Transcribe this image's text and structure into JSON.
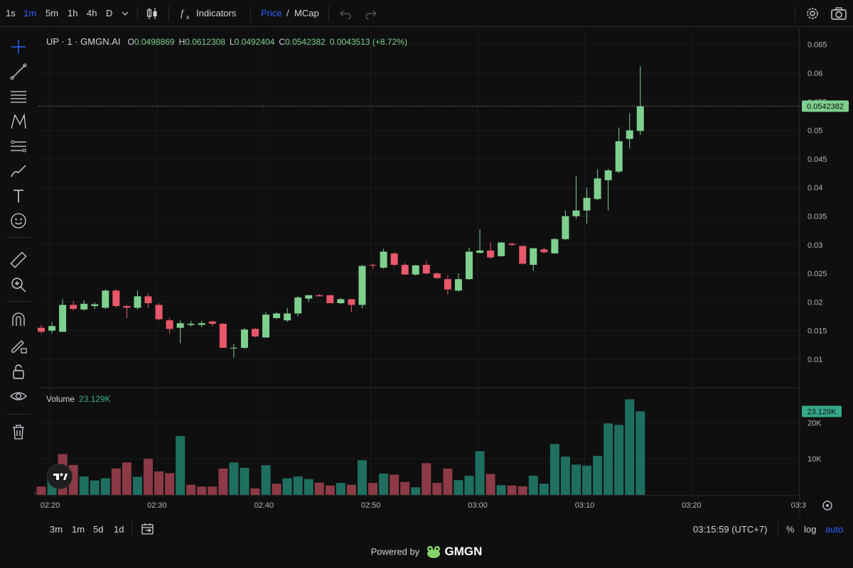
{
  "toolbar": {
    "timeframes": [
      "1s",
      "1m",
      "5m",
      "1h",
      "4h",
      "D"
    ],
    "active_timeframe": "1m",
    "indicators_label": "Indicators",
    "price_label": "Price",
    "slash": "/",
    "mcap_label": "MCap",
    "icons": {
      "chevron": "chevron-down-icon",
      "candles": "candles-icon",
      "fx": "fx-icon",
      "undo": "undo-icon",
      "redo": "redo-icon",
      "settings": "gear-icon",
      "camera": "camera-icon"
    }
  },
  "legend": {
    "symbol": "UP · 1 · GMGN.AI",
    "o_key": "O",
    "o_val": "0.0498869",
    "h_key": "H",
    "h_val": "0.0612308",
    "l_key": "L",
    "l_val": "0.0492404",
    "c_key": "C",
    "c_val": "0.0542382",
    "change": "0.0043513 (+8.72%)"
  },
  "volume_legend": {
    "label": "Volume",
    "value": "23.129K"
  },
  "bottom": {
    "ranges": [
      "3m",
      "1m",
      "5d",
      "1d"
    ],
    "clock": "03:15:59 (UTC+7)",
    "percent": "%",
    "log": "log",
    "auto": "auto"
  },
  "powered": {
    "text": "Powered by",
    "brand": "GMGN"
  },
  "colors": {
    "up": "#7fd08f",
    "down": "#e8576a",
    "vol_up": "#1f6f61",
    "vol_down": "#8c3a45",
    "accent": "#2962ff",
    "price_tag": "#7fd08f",
    "vol_tag": "#35a88a"
  },
  "chart_data": {
    "type": "candlestick",
    "x_ticks": [
      "02:20",
      "02:30",
      "02:40",
      "02:50",
      "03:00",
      "03:10",
      "03:20",
      "03:3"
    ],
    "y_ticks": [
      "0.065",
      "0.06",
      "0.055",
      "0.05",
      "0.045",
      "0.04",
      "0.035",
      "0.03",
      "0.025",
      "0.02",
      "0.015",
      "0.01"
    ],
    "ylim": [
      0.005,
      0.0665
    ],
    "volume_ticks": [
      "20K",
      "10K"
    ],
    "volume_ylim": [
      0,
      30000
    ],
    "last_price": "0.0542382",
    "last_volume": "23.129K",
    "candles": [
      {
        "o": 0.0155,
        "h": 0.016,
        "l": 0.0145,
        "c": 0.0148
      },
      {
        "o": 0.015,
        "h": 0.0165,
        "l": 0.0145,
        "c": 0.0158
      },
      {
        "o": 0.0148,
        "h": 0.0205,
        "l": 0.0148,
        "c": 0.0195
      },
      {
        "o": 0.0195,
        "h": 0.0202,
        "l": 0.0185,
        "c": 0.0188
      },
      {
        "o": 0.0187,
        "h": 0.0203,
        "l": 0.0185,
        "c": 0.0197
      },
      {
        "o": 0.0193,
        "h": 0.0199,
        "l": 0.0188,
        "c": 0.0196
      },
      {
        "o": 0.019,
        "h": 0.0222,
        "l": 0.0188,
        "c": 0.022
      },
      {
        "o": 0.022,
        "h": 0.0222,
        "l": 0.019,
        "c": 0.0193
      },
      {
        "o": 0.0193,
        "h": 0.0195,
        "l": 0.0172,
        "c": 0.019
      },
      {
        "o": 0.019,
        "h": 0.022,
        "l": 0.0187,
        "c": 0.021
      },
      {
        "o": 0.021,
        "h": 0.0215,
        "l": 0.019,
        "c": 0.0198
      },
      {
        "o": 0.0195,
        "h": 0.0198,
        "l": 0.0168,
        "c": 0.017
      },
      {
        "o": 0.0168,
        "h": 0.0172,
        "l": 0.0145,
        "c": 0.0153
      },
      {
        "o": 0.0155,
        "h": 0.0168,
        "l": 0.0128,
        "c": 0.0163
      },
      {
        "o": 0.016,
        "h": 0.0167,
        "l": 0.0157,
        "c": 0.0162
      },
      {
        "o": 0.016,
        "h": 0.0167,
        "l": 0.0156,
        "c": 0.0163
      },
      {
        "o": 0.0166,
        "h": 0.0167,
        "l": 0.0158,
        "c": 0.0162
      },
      {
        "o": 0.0162,
        "h": 0.0163,
        "l": 0.012,
        "c": 0.012
      },
      {
        "o": 0.012,
        "h": 0.0127,
        "l": 0.0103,
        "c": 0.012
      },
      {
        "o": 0.012,
        "h": 0.0155,
        "l": 0.0118,
        "c": 0.0152
      },
      {
        "o": 0.0153,
        "h": 0.0155,
        "l": 0.0138,
        "c": 0.014
      },
      {
        "o": 0.0138,
        "h": 0.0182,
        "l": 0.0138,
        "c": 0.0178
      },
      {
        "o": 0.0172,
        "h": 0.0182,
        "l": 0.017,
        "c": 0.018
      },
      {
        "o": 0.0168,
        "h": 0.019,
        "l": 0.0165,
        "c": 0.018
      },
      {
        "o": 0.018,
        "h": 0.021,
        "l": 0.0175,
        "c": 0.0208
      },
      {
        "o": 0.0206,
        "h": 0.0212,
        "l": 0.02,
        "c": 0.0212
      },
      {
        "o": 0.0212,
        "h": 0.0214,
        "l": 0.021,
        "c": 0.021
      },
      {
        "o": 0.0212,
        "h": 0.0212,
        "l": 0.0198,
        "c": 0.0198
      },
      {
        "o": 0.0198,
        "h": 0.0207,
        "l": 0.0196,
        "c": 0.0205
      },
      {
        "o": 0.0205,
        "h": 0.0205,
        "l": 0.0182,
        "c": 0.0195
      },
      {
        "o": 0.0195,
        "h": 0.0265,
        "l": 0.0189,
        "c": 0.0263
      },
      {
        "o": 0.0265,
        "h": 0.0267,
        "l": 0.0258,
        "c": 0.0264
      },
      {
        "o": 0.026,
        "h": 0.0293,
        "l": 0.0258,
        "c": 0.0288
      },
      {
        "o": 0.0285,
        "h": 0.0287,
        "l": 0.0262,
        "c": 0.0265
      },
      {
        "o": 0.0265,
        "h": 0.0268,
        "l": 0.0248,
        "c": 0.0248
      },
      {
        "o": 0.0248,
        "h": 0.0265,
        "l": 0.0246,
        "c": 0.0264
      },
      {
        "o": 0.0265,
        "h": 0.0272,
        "l": 0.0248,
        "c": 0.025
      },
      {
        "o": 0.025,
        "h": 0.0252,
        "l": 0.024,
        "c": 0.0242
      },
      {
        "o": 0.024,
        "h": 0.0247,
        "l": 0.0213,
        "c": 0.0222
      },
      {
        "o": 0.022,
        "h": 0.025,
        "l": 0.0218,
        "c": 0.024
      },
      {
        "o": 0.024,
        "h": 0.0295,
        "l": 0.0238,
        "c": 0.0288
      },
      {
        "o": 0.0286,
        "h": 0.0327,
        "l": 0.0285,
        "c": 0.029
      },
      {
        "o": 0.029,
        "h": 0.0305,
        "l": 0.0275,
        "c": 0.0278
      },
      {
        "o": 0.028,
        "h": 0.0305,
        "l": 0.028,
        "c": 0.0304
      },
      {
        "o": 0.0302,
        "h": 0.0304,
        "l": 0.0298,
        "c": 0.03
      },
      {
        "o": 0.0298,
        "h": 0.0298,
        "l": 0.0265,
        "c": 0.0267
      },
      {
        "o": 0.0265,
        "h": 0.0294,
        "l": 0.0255,
        "c": 0.0294
      },
      {
        "o": 0.0292,
        "h": 0.0295,
        "l": 0.0285,
        "c": 0.0287
      },
      {
        "o": 0.0285,
        "h": 0.0312,
        "l": 0.0285,
        "c": 0.031
      },
      {
        "o": 0.031,
        "h": 0.036,
        "l": 0.0308,
        "c": 0.035
      },
      {
        "o": 0.035,
        "h": 0.042,
        "l": 0.0345,
        "c": 0.036
      },
      {
        "o": 0.036,
        "h": 0.04,
        "l": 0.0337,
        "c": 0.0382
      },
      {
        "o": 0.038,
        "h": 0.0432,
        "l": 0.0378,
        "c": 0.0416
      },
      {
        "o": 0.0413,
        "h": 0.0433,
        "l": 0.036,
        "c": 0.043
      },
      {
        "o": 0.0428,
        "h": 0.0505,
        "l": 0.0425,
        "c": 0.0481
      },
      {
        "o": 0.0485,
        "h": 0.053,
        "l": 0.0468,
        "c": 0.05
      },
      {
        "o": 0.0499,
        "h": 0.0612,
        "l": 0.0492,
        "c": 0.0542
      }
    ],
    "volumes": [
      2300,
      5500,
      11300,
      8300,
      5100,
      4000,
      4600,
      7300,
      9000,
      5000,
      10000,
      6500,
      6000,
      16300,
      2800,
      2300,
      2300,
      7300,
      9000,
      7500,
      1800,
      8200,
      3100,
      4600,
      5100,
      4400,
      3400,
      2600,
      3300,
      2800,
      9600,
      3300,
      5900,
      5600,
      3600,
      2100,
      8800,
      3300,
      7300,
      4100,
      5300,
      12100,
      5800,
      2700,
      2600,
      2400,
      5300,
      3100,
      14100,
      10600,
      8400,
      8100,
      10800,
      19800,
      19400,
      26500,
      23129
    ],
    "volume_colors": [
      "down",
      "up",
      "down",
      "down",
      "up",
      "up",
      "up",
      "down",
      "down",
      "up",
      "down",
      "down",
      "down",
      "up",
      "down",
      "down",
      "down",
      "down",
      "up",
      "up",
      "down",
      "up",
      "down",
      "up",
      "up",
      "up",
      "down",
      "down",
      "up",
      "down",
      "up",
      "down",
      "up",
      "down",
      "down",
      "up",
      "down",
      "down",
      "down",
      "up",
      "up",
      "up",
      "down",
      "up",
      "down",
      "down",
      "up",
      "up",
      "up",
      "up",
      "up",
      "up",
      "up",
      "up",
      "up",
      "up",
      "up"
    ]
  }
}
